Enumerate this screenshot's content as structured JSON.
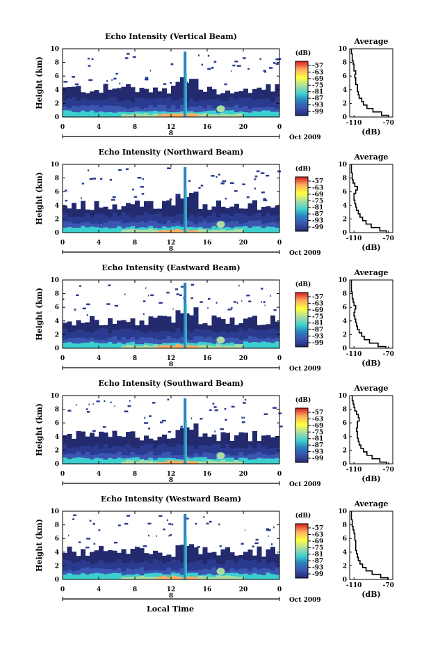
{
  "chart_data": [
    {
      "type": "heatmap",
      "title": "Echo Intensity (Vertical Beam)",
      "ylabel": "Height (km)",
      "xlabel": "Local Time",
      "x_ticks": [
        "0",
        "4",
        "8",
        "12",
        "16",
        "20",
        "0"
      ],
      "y_ticks": [
        "0",
        "2",
        "4",
        "6",
        "8",
        "10"
      ],
      "xlim": [
        0,
        24
      ],
      "ylim": [
        0,
        10
      ],
      "day_label": "8",
      "month_label": "Oct 2009",
      "colorbar_unit": "(dB)",
      "colorbar_ticks": [
        "-57",
        "-63",
        "-69",
        "-75",
        "-81",
        "-87",
        "-93",
        "-99"
      ],
      "profile": {
        "title": "Average",
        "xlabel": "(dB)",
        "x_ticks": [
          "-110",
          "-70"
        ],
        "xlim": [
          -115,
          -65
        ],
        "heights": [
          0,
          0.5,
          1,
          1.5,
          2,
          2.5,
          3,
          3.5,
          4,
          4.5,
          5,
          5.5,
          6,
          6.5,
          7,
          7.5,
          8,
          8.5,
          9,
          9.5,
          10
        ],
        "values": [
          -70,
          -78,
          -88,
          -95,
          -99,
          -101,
          -104,
          -105,
          -106,
          -106,
          -108,
          -108,
          -109,
          -108,
          -110,
          -110,
          -111,
          -112,
          -112,
          -113,
          -113
        ]
      }
    },
    {
      "type": "heatmap",
      "title": "Echo Intensity (Northward Beam)",
      "ylabel": "Height (km)",
      "xlabel": "Local Time",
      "x_ticks": [
        "0",
        "4",
        "8",
        "12",
        "16",
        "20",
        "0"
      ],
      "y_ticks": [
        "0",
        "2",
        "4",
        "6",
        "8",
        "10"
      ],
      "xlim": [
        0,
        24
      ],
      "ylim": [
        0,
        10
      ],
      "day_label": "8",
      "month_label": "Oct 2009",
      "colorbar_unit": "(dB)",
      "colorbar_ticks": [
        "-57",
        "-63",
        "-69",
        "-75",
        "-81",
        "-87",
        "-93",
        "-99"
      ],
      "profile": {
        "title": "Average",
        "xlabel": "(dB)",
        "x_ticks": [
          "-110",
          "-70"
        ],
        "xlim": [
          -115,
          -65
        ],
        "heights": [
          0,
          0.5,
          1,
          1.5,
          2,
          2.5,
          3,
          3.5,
          4,
          4.5,
          5,
          5.5,
          6,
          6.5,
          7,
          7.5,
          8,
          8.5,
          9,
          9.5,
          10
        ],
        "values": [
          -72,
          -80,
          -90,
          -96,
          -100,
          -103,
          -105,
          -107,
          -108,
          -109,
          -110,
          -110,
          -108,
          -106,
          -109,
          -111,
          -112,
          -112,
          -113,
          -113,
          -113
        ]
      }
    },
    {
      "type": "heatmap",
      "title": "Echo Intensity (Eastward Beam)",
      "ylabel": "Height (km)",
      "xlabel": "Local Time",
      "x_ticks": [
        "0",
        "4",
        "8",
        "12",
        "16",
        "20",
        "0"
      ],
      "y_ticks": [
        "0",
        "2",
        "4",
        "6",
        "8",
        "10"
      ],
      "xlim": [
        0,
        24
      ],
      "ylim": [
        0,
        10
      ],
      "day_label": "8",
      "month_label": "Oct 2009",
      "colorbar_unit": "(dB)",
      "colorbar_ticks": [
        "-57",
        "-63",
        "-69",
        "-75",
        "-81",
        "-87",
        "-93",
        "-99"
      ],
      "profile": {
        "title": "Average",
        "xlabel": "(dB)",
        "x_ticks": [
          "-110",
          "-70"
        ],
        "xlim": [
          -115,
          -65
        ],
        "heights": [
          0,
          0.5,
          1,
          1.5,
          2,
          2.5,
          3,
          3.5,
          4,
          4.5,
          5,
          5.5,
          6,
          6.5,
          7,
          7.5,
          8,
          8.5,
          9,
          9.5,
          10
        ],
        "values": [
          -73,
          -82,
          -92,
          -98,
          -101,
          -104,
          -106,
          -107,
          -108,
          -109,
          -110,
          -109,
          -108,
          -110,
          -111,
          -112,
          -112,
          -113,
          -113,
          -113,
          -113
        ]
      }
    },
    {
      "type": "heatmap",
      "title": "Echo Intensity (Southward Beam)",
      "ylabel": "Height (km)",
      "xlabel": "Local Time",
      "x_ticks": [
        "0",
        "4",
        "8",
        "12",
        "16",
        "20",
        "0"
      ],
      "y_ticks": [
        "0",
        "2",
        "4",
        "6",
        "8",
        "10"
      ],
      "xlim": [
        0,
        24
      ],
      "ylim": [
        0,
        10
      ],
      "day_label": "8",
      "month_label": "Oct 2009",
      "colorbar_unit": "(dB)",
      "colorbar_ticks": [
        "-57",
        "-63",
        "-69",
        "-75",
        "-81",
        "-87",
        "-93",
        "-99"
      ],
      "profile": {
        "title": "Average",
        "xlabel": "(dB)",
        "x_ticks": [
          "-110",
          "-70"
        ],
        "xlim": [
          -115,
          -65
        ],
        "heights": [
          0,
          0.5,
          1,
          1.5,
          2,
          2.5,
          3,
          3.5,
          4,
          4.5,
          5,
          5.5,
          6,
          6.5,
          7,
          7.5,
          8,
          8.5,
          9,
          9.5,
          10
        ],
        "values": [
          -72,
          -80,
          -89,
          -95,
          -99,
          -102,
          -104,
          -105,
          -106,
          -106,
          -107,
          -106,
          -106,
          -104,
          -105,
          -107,
          -109,
          -110,
          -111,
          -112,
          -112
        ]
      }
    },
    {
      "type": "heatmap",
      "title": "Echo Intensity (Westward Beam)",
      "ylabel": "Height (km)",
      "xlabel": "Local Time",
      "x_ticks": [
        "0",
        "4",
        "8",
        "12",
        "16",
        "20",
        "0"
      ],
      "y_ticks": [
        "0",
        "2",
        "4",
        "6",
        "8",
        "10"
      ],
      "xlim": [
        0,
        24
      ],
      "ylim": [
        0,
        10
      ],
      "day_label": "8",
      "month_label": "Oct 2009",
      "colorbar_unit": "(dB)",
      "colorbar_ticks": [
        "-57",
        "-63",
        "-69",
        "-75",
        "-81",
        "-87",
        "-93",
        "-99"
      ],
      "profile": {
        "title": "Average",
        "xlabel": "(dB)",
        "x_ticks": [
          "-110",
          "-70"
        ],
        "xlim": [
          -115,
          -65
        ],
        "heights": [
          0,
          0.5,
          1,
          1.5,
          2,
          2.5,
          3,
          3.5,
          4,
          4.5,
          5,
          5.5,
          6,
          6.5,
          7,
          7.5,
          8,
          8.5,
          9,
          9.5,
          10
        ],
        "values": [
          -71,
          -79,
          -89,
          -96,
          -100,
          -103,
          -105,
          -106,
          -107,
          -108,
          -108,
          -108,
          -109,
          -109,
          -110,
          -111,
          -112,
          -112,
          -113,
          -113,
          -113
        ]
      }
    }
  ],
  "xlabel_bottom": "Local Time",
  "colorscale": [
    "#d7191c",
    "#fdae61",
    "#ffff3f",
    "#abdda4",
    "#3ccfcf",
    "#2b83ba",
    "#3a56b0",
    "#2a3b8f",
    "#232a6e"
  ]
}
